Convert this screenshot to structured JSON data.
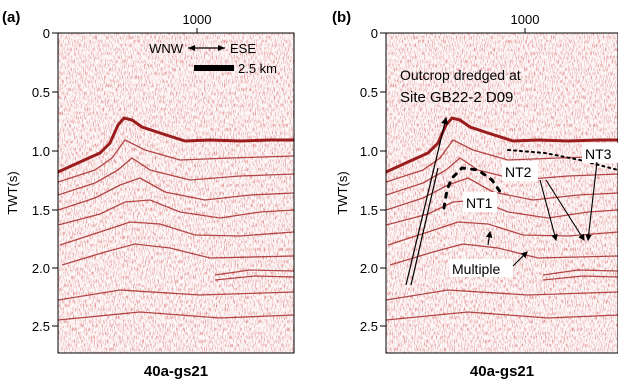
{
  "panels": [
    {
      "letter": "(a)",
      "caption": "40a-gs21",
      "top_tick": "1000",
      "ylabel": "TWT(s)",
      "yticks": [
        "0",
        "0.5",
        "1.0",
        "1.5",
        "2.0",
        "2.5"
      ],
      "direction_left": "WNW",
      "direction_right": "ESE",
      "scale_label": "2.5 km"
    },
    {
      "letter": "(b)",
      "caption": "40a-gs21",
      "top_tick": "1000",
      "ylabel": "TWT(s)",
      "yticks": [
        "0",
        "0.5",
        "1.0",
        "1.5",
        "2.0",
        "2.5"
      ],
      "annotation_line1": "Outcrop dredged at",
      "annotation_line2": "Site GB22-2 D09",
      "labels": {
        "nt1": "NT1",
        "nt2": "NT2",
        "nt3": "NT3",
        "multiple": "Multiple"
      }
    }
  ],
  "colors": {
    "seismic": "#b22222",
    "background": "#ffffff"
  }
}
